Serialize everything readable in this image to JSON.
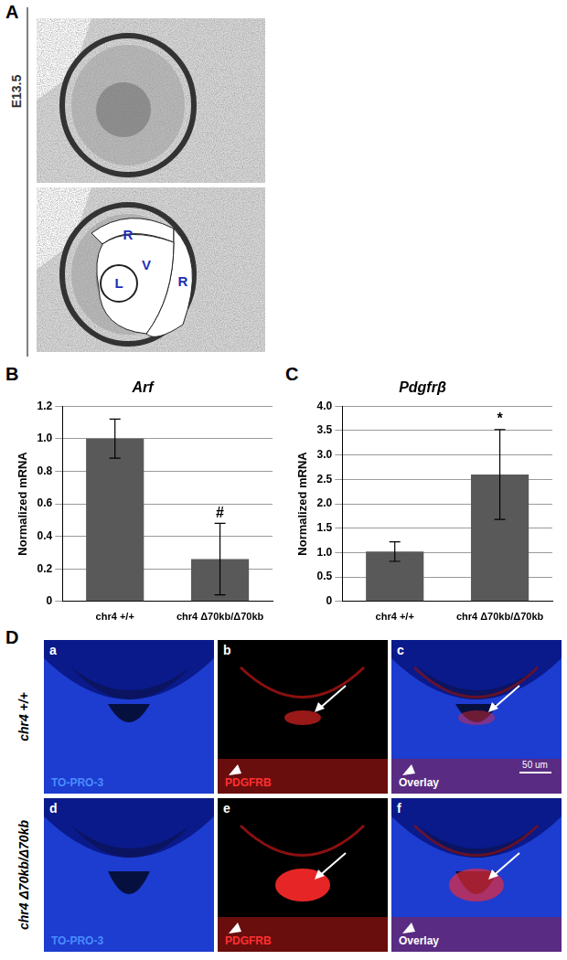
{
  "panel_labels": [
    "A",
    "B",
    "C",
    "D"
  ],
  "panel_a": {
    "stage": "E13.5",
    "region_labels": [
      "R",
      "V",
      "L",
      "R"
    ]
  },
  "chart_data": [
    {
      "type": "bar",
      "title": "Arf",
      "y_label": "Normalized mRNA",
      "categories": [
        "chr4 +/+",
        "chr4 Δ70kb/Δ70kb"
      ],
      "values": [
        1.0,
        0.26
      ],
      "errors": [
        0.12,
        0.22
      ],
      "annotations": [
        {
          "category": "chr4 Δ70kb/Δ70kb",
          "text": "#"
        }
      ],
      "color": "#595959",
      "ylim": [
        0,
        1.2
      ],
      "yticks": [
        0,
        0.2,
        0.4,
        0.6,
        0.8,
        {
          "value": 1,
          "label": "1.0"
        },
        1.2
      ],
      "grid": true
    },
    {
      "type": "bar",
      "title": "Pdgfrβ",
      "y_label": "Normalized mRNA",
      "categories": [
        "chr4 +/+",
        "chr4 Δ70kb/Δ70kb"
      ],
      "values": [
        1.02,
        2.6
      ],
      "errors": [
        0.2,
        0.92
      ],
      "annotations": [
        {
          "category": "chr4 Δ70kb/Δ70kb",
          "text": "*"
        }
      ],
      "color": "#595959",
      "ylim": [
        0,
        4
      ],
      "yticks": [
        0,
        0.5,
        {
          "value": 1,
          "label": "1.0"
        },
        1.5,
        {
          "value": 2,
          "label": "2.0"
        },
        2.5,
        {
          "value": 3,
          "label": "3.0"
        },
        3.5,
        {
          "value": 4,
          "label": "4.0"
        }
      ],
      "grid": true
    }
  ],
  "panel_d": {
    "genotypes": [
      "chr4 +/+",
      "chr4 Δ70kb/Δ70kb"
    ],
    "subpanels": [
      "a",
      "b",
      "c",
      "d",
      "e",
      "f"
    ],
    "channels": [
      "TO-PRO-3",
      "PDGFRB",
      "Overlay"
    ],
    "scale_bar": "50 um"
  }
}
